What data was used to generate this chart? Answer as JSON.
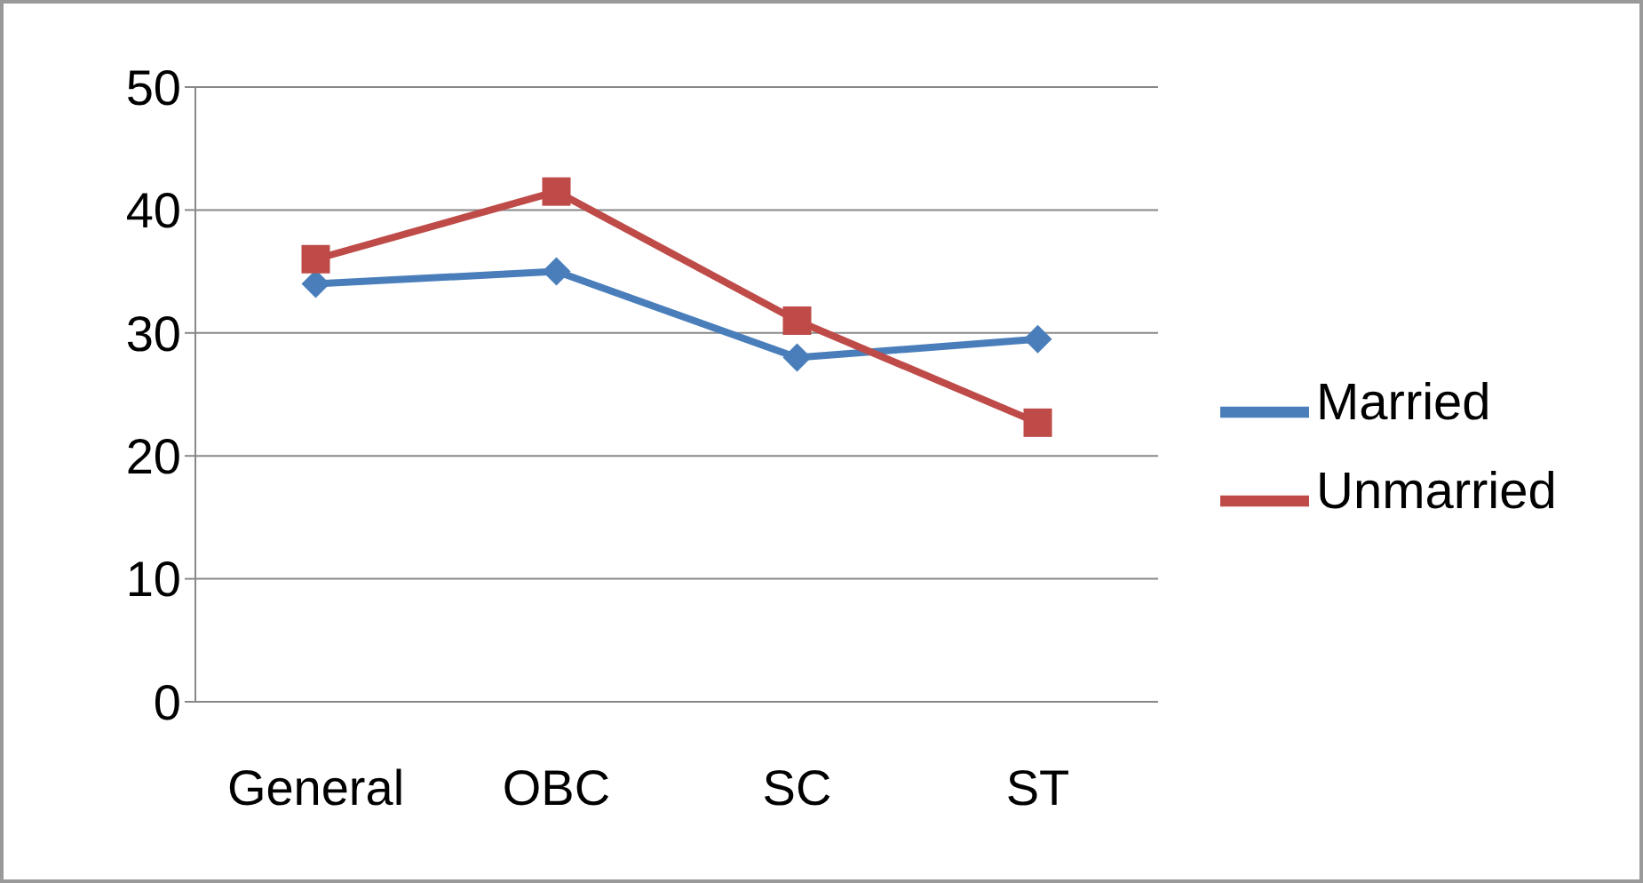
{
  "chart_data": {
    "type": "line",
    "categories": [
      "General",
      "OBC",
      "SC",
      "ST"
    ],
    "series": [
      {
        "name": "Married",
        "color": "#4a7ebb",
        "marker": "diamond",
        "values": [
          34,
          35,
          28,
          29.5
        ]
      },
      {
        "name": "Unmarried",
        "color": "#be4b48",
        "marker": "square",
        "values": [
          36,
          41.5,
          31,
          22.7
        ]
      }
    ],
    "ylim": [
      0,
      50
    ],
    "yticks": [
      0,
      10,
      20,
      30,
      40,
      50
    ],
    "grid": "y",
    "legend": "right"
  }
}
